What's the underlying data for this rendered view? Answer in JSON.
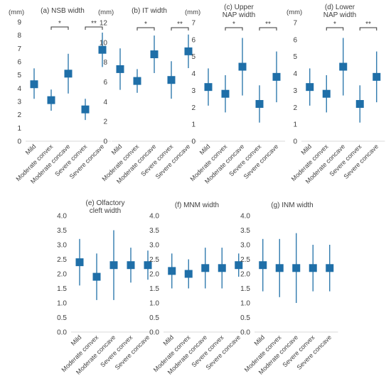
{
  "figure": {
    "marker_color": "#1F6FA8",
    "axis_color": "#d9d9d9",
    "text_color": "#404040"
  },
  "chart_data": [
    {
      "type": "errorbar",
      "title": [
        "(a) NSB width"
      ],
      "unit": "(mm)",
      "categories": [
        "Mild",
        "Moderate convex",
        "Moderate concave",
        "Severe convex",
        "Severe concave"
      ],
      "ylim": [
        0,
        9
      ],
      "ytick_step": 1,
      "ytick_decimals": 0,
      "values": [
        4.3,
        3.1,
        5.1,
        2.4,
        6.9
      ],
      "lower": [
        3.2,
        2.3,
        3.6,
        1.6,
        5.6
      ],
      "upper": [
        5.5,
        3.9,
        6.6,
        3.2,
        8.2
      ],
      "significance": [
        {
          "from": 1,
          "to": 2,
          "label": "*"
        },
        {
          "from": 3,
          "to": 4,
          "label": "**"
        }
      ]
    },
    {
      "type": "errorbar",
      "title": [
        "(b) IT width"
      ],
      "unit": "(mm)",
      "categories": [
        "Mild",
        "Moderate convex",
        "Moderate concave",
        "Severe convex",
        "Severe concave"
      ],
      "ylim": [
        0,
        12
      ],
      "ytick_step": 2,
      "ytick_decimals": 0,
      "values": [
        7.3,
        6.1,
        8.8,
        6.2,
        9.1
      ],
      "lower": [
        5.2,
        4.9,
        6.9,
        4.3,
        7.4
      ],
      "upper": [
        9.4,
        7.3,
        10.7,
        8.1,
        10.8
      ],
      "significance": [
        {
          "from": 1,
          "to": 2,
          "label": "*"
        },
        {
          "from": 3,
          "to": 4,
          "label": "**"
        }
      ]
    },
    {
      "type": "errorbar",
      "title": [
        "(c) Upper",
        "NAP width"
      ],
      "unit": "(mm)",
      "categories": [
        "Mild",
        "Moderate convex",
        "Moderate concave",
        "Severe convex",
        "Severe concave"
      ],
      "ylim": [
        0,
        7
      ],
      "ytick_step": 1,
      "ytick_decimals": 0,
      "values": [
        3.2,
        2.8,
        4.4,
        2.2,
        3.8
      ],
      "lower": [
        2.1,
        1.7,
        2.7,
        1.1,
        2.3
      ],
      "upper": [
        4.3,
        3.9,
        6.1,
        3.3,
        5.3
      ],
      "significance": [
        {
          "from": 1,
          "to": 2,
          "label": "*"
        },
        {
          "from": 3,
          "to": 4,
          "label": "**"
        }
      ]
    },
    {
      "type": "errorbar",
      "title": [
        "(d) Lower",
        "NAP width"
      ],
      "unit": "(mm)",
      "categories": [
        "Mild",
        "Moderate convex",
        "Moderate concave",
        "Severe convex",
        "Severe concave"
      ],
      "ylim": [
        0,
        7
      ],
      "ytick_step": 1,
      "ytick_decimals": 0,
      "values": [
        3.2,
        2.8,
        4.4,
        2.2,
        3.8
      ],
      "lower": [
        2.1,
        1.7,
        2.7,
        1.1,
        2.3
      ],
      "upper": [
        4.3,
        3.9,
        6.1,
        3.3,
        5.3
      ],
      "significance": [
        {
          "from": 1,
          "to": 2,
          "label": "*"
        },
        {
          "from": 3,
          "to": 4,
          "label": "**"
        }
      ]
    },
    {
      "type": "errorbar",
      "title": [
        "(e) Olfactory",
        "cleft width"
      ],
      "unit": "",
      "categories": [
        "Mild",
        "Moderate convex",
        "Moderate concave",
        "Severe convex",
        "Severe concave"
      ],
      "ylim": [
        0,
        4
      ],
      "ytick_step": 0.5,
      "ytick_decimals": 1,
      "values": [
        2.4,
        1.9,
        2.3,
        2.3,
        2.3
      ],
      "lower": [
        1.6,
        1.1,
        1.1,
        1.7,
        1.8
      ],
      "upper": [
        3.2,
        2.7,
        3.5,
        2.9,
        2.8
      ],
      "significance": []
    },
    {
      "type": "errorbar",
      "title": [
        "(f) MNM width"
      ],
      "unit": "",
      "categories": [
        "Mild",
        "Moderate convex",
        "Moderate concave",
        "Severe convex",
        "Severe concave"
      ],
      "ylim": [
        0,
        4
      ],
      "ytick_step": 0.5,
      "ytick_decimals": 1,
      "values": [
        2.1,
        2.0,
        2.2,
        2.2,
        2.3
      ],
      "lower": [
        1.5,
        1.5,
        1.5,
        1.5,
        1.9
      ],
      "upper": [
        2.7,
        2.5,
        2.9,
        2.9,
        2.7
      ],
      "significance": []
    },
    {
      "type": "errorbar",
      "title": [
        "(g) INM width"
      ],
      "unit": "",
      "categories": [
        "Mild",
        "Moderate convex",
        "Moderate concave",
        "Severe convex",
        "Severe concave"
      ],
      "ylim": [
        0,
        4
      ],
      "ytick_step": 0.5,
      "ytick_decimals": 1,
      "values": [
        2.3,
        2.2,
        2.2,
        2.2,
        2.2
      ],
      "lower": [
        1.4,
        1.2,
        1.0,
        1.4,
        1.4
      ],
      "upper": [
        3.2,
        3.2,
        3.4,
        3.0,
        3.0
      ],
      "significance": []
    }
  ]
}
